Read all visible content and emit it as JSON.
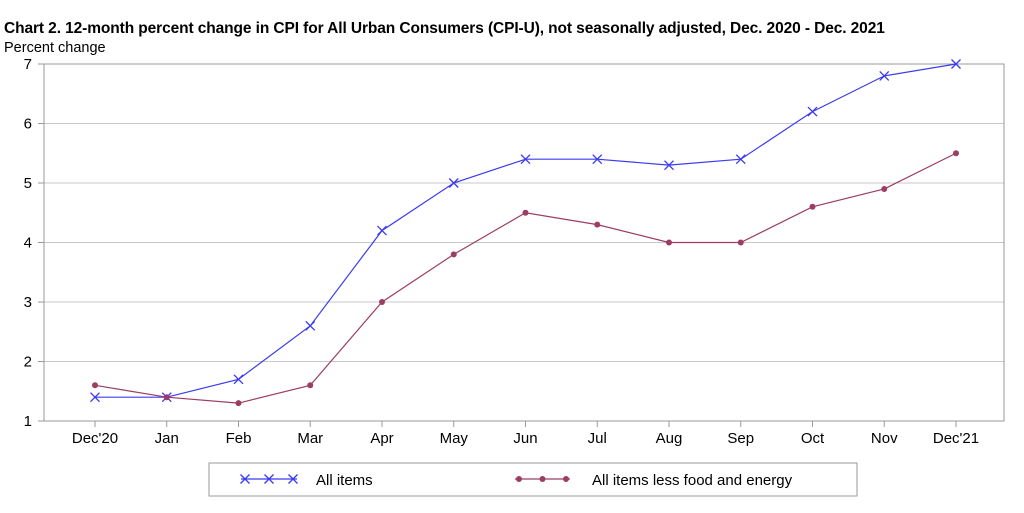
{
  "chart_data": {
    "type": "line",
    "title": "Chart 2. 12-month percent change in CPI for All Urban Consumers (CPI-U), not seasonally adjusted, Dec. 2020 - Dec. 2021",
    "subtitle": "Percent change",
    "xlabel": "",
    "ylabel": "",
    "categories": [
      "Dec'20",
      "Jan",
      "Feb",
      "Mar",
      "Apr",
      "May",
      "Jun",
      "Jul",
      "Aug",
      "Sep",
      "Oct",
      "Nov",
      "Dec'21"
    ],
    "ylim": [
      1,
      7
    ],
    "yticks": [
      1,
      2,
      3,
      4,
      5,
      6,
      7
    ],
    "grid": "horizontal",
    "legend_position": "bottom",
    "series": [
      {
        "name": "All items",
        "color": "#3b3bf0",
        "marker": "x",
        "values": [
          1.4,
          1.4,
          1.7,
          2.6,
          4.2,
          5.0,
          5.4,
          5.4,
          5.3,
          5.4,
          6.2,
          6.8,
          7.0
        ]
      },
      {
        "name": "All items less food and energy",
        "color": "#9c3d63",
        "marker": "circle",
        "values": [
          1.6,
          1.4,
          1.3,
          1.6,
          3.0,
          3.8,
          4.5,
          4.3,
          4.0,
          4.0,
          4.6,
          4.9,
          5.5
        ]
      }
    ]
  }
}
